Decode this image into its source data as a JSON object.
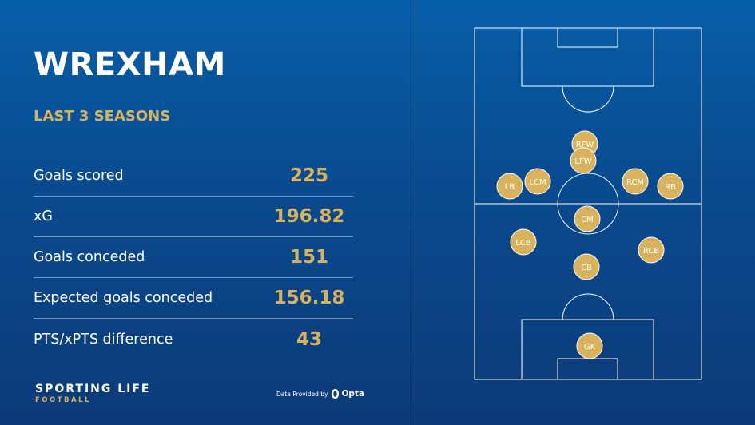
{
  "header": {
    "title": "WREXHAM",
    "subtitle": "LAST 3 SEASONS"
  },
  "stats": [
    {
      "label": "Goals scored",
      "value": "225"
    },
    {
      "label": "xG",
      "value": "196.82"
    },
    {
      "label": "Goals conceded",
      "value": "151"
    },
    {
      "label": "Expected goals conceded",
      "value": "156.18"
    },
    {
      "label": "PTS/xPTS difference",
      "value": "43"
    }
  ],
  "brand": {
    "name": "SPORTING LIFE",
    "sub": "FOOTBALL"
  },
  "provider": {
    "text": "Data Provided by",
    "logo_text": "Opta"
  },
  "formation": {
    "players": [
      "RFW",
      "LFW",
      "LCM",
      "RCM",
      "LB",
      "RB",
      "CM",
      "LCB",
      "RCB",
      "CB",
      "GK"
    ]
  },
  "colors": {
    "accent": "#d9b25e",
    "background": "#0a4a8e",
    "player_fill": "#d9b25e",
    "pitch_lines": "#ffffff"
  }
}
